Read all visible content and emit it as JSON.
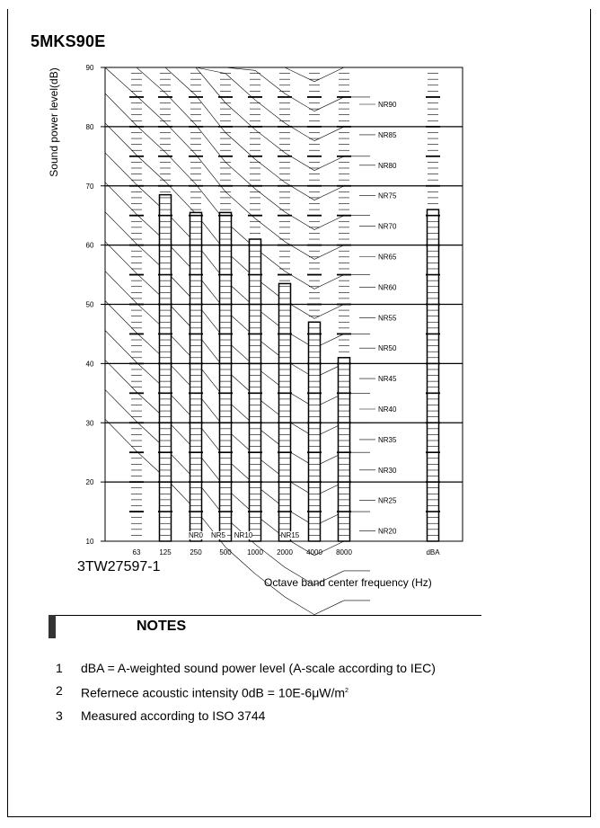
{
  "page": {
    "model": "5MKS90E",
    "drawing_code": "3TW27597-1"
  },
  "notes": {
    "heading": "NOTES",
    "items": [
      {
        "num": "1",
        "text": "dBA = A-weighted sound power level (A-scale according to IEC)"
      },
      {
        "num": "2",
        "text": "Refernece acoustic intensity 0dB = 10E-6μW/m",
        "sup": "2"
      },
      {
        "num": "3",
        "text": "Measured according to ISO 3744"
      }
    ]
  },
  "chart_data": {
    "type": "bar",
    "title": "5MKS90E",
    "xlabel": "Octave band center frequency (Hz)",
    "ylabel": "Sound power level(dB)",
    "ylim": [
      10,
      90
    ],
    "yticks": [
      10,
      20,
      30,
      40,
      50,
      60,
      70,
      80,
      90
    ],
    "grid": true,
    "categories": [
      "63",
      "125",
      "250",
      "500",
      "1000",
      "2000",
      "4000",
      "8000",
      "dBA"
    ],
    "values": [
      null,
      68.5,
      65.5,
      65.5,
      61,
      53.5,
      47,
      41,
      66
    ],
    "nr_curves": [
      "NR0",
      "NR5",
      "NR10",
      "NR15",
      "NR20",
      "NR25",
      "NR30",
      "NR35",
      "NR40",
      "NR45",
      "NR50",
      "NR55",
      "NR60",
      "NR65",
      "NR70",
      "NR75",
      "NR80",
      "NR85",
      "NR90"
    ],
    "nr_inline_labels": [
      "NR0",
      "NR5",
      "NR10",
      "NR15"
    ],
    "nr_side_labels": [
      "NR90",
      "NR85",
      "NR80",
      "NR75",
      "NR70",
      "NR65",
      "NR60",
      "NR55",
      "NR50",
      "NR45",
      "NR40",
      "NR35",
      "NR30",
      "NR25",
      "NR20"
    ]
  }
}
